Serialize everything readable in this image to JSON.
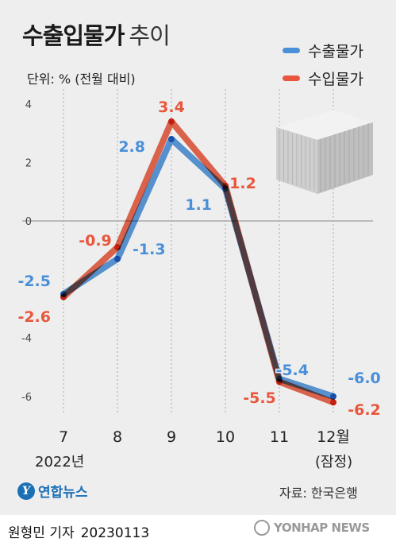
{
  "title": "수출입물가",
  "subtitle": "추이",
  "unit": "단위: % (전월 대비)",
  "legend": [
    {
      "label": "수출물가",
      "color": "#4a90d9"
    },
    {
      "label": "수입물가",
      "color": "#e8573c"
    }
  ],
  "chart_data": {
    "type": "line",
    "categories": [
      "7",
      "8",
      "9",
      "10",
      "11",
      "12월"
    ],
    "series": [
      {
        "name": "수출물가",
        "color": "#4a90d9",
        "values": [
          -2.5,
          -1.3,
          2.8,
          1.1,
          -5.4,
          -6.0
        ],
        "labels": [
          "-2.5",
          "-1.3",
          "2.8",
          "1.1",
          "-5.4",
          "-6.0"
        ]
      },
      {
        "name": "수입물가",
        "color": "#e8573c",
        "values": [
          -2.6,
          -0.9,
          3.4,
          1.2,
          -5.5,
          -6.2
        ],
        "labels": [
          "-2.6",
          "-0.9",
          "3.4",
          "1.2",
          "-5.5",
          "-6.2"
        ]
      }
    ],
    "yticks": [
      "4",
      "2",
      "0",
      "-2",
      "-4",
      "-6"
    ],
    "ylim": [
      -7,
      4
    ],
    "grid": "vertical dotted"
  },
  "year_label": "2022년",
  "prelim_label": "(잠정)",
  "logo_text": "연합뉴스",
  "source": "자료: 한국은행",
  "byline": {
    "reporter": "원형민 기자",
    "date": "20230113"
  },
  "watermark": "YONHAP NEWS"
}
